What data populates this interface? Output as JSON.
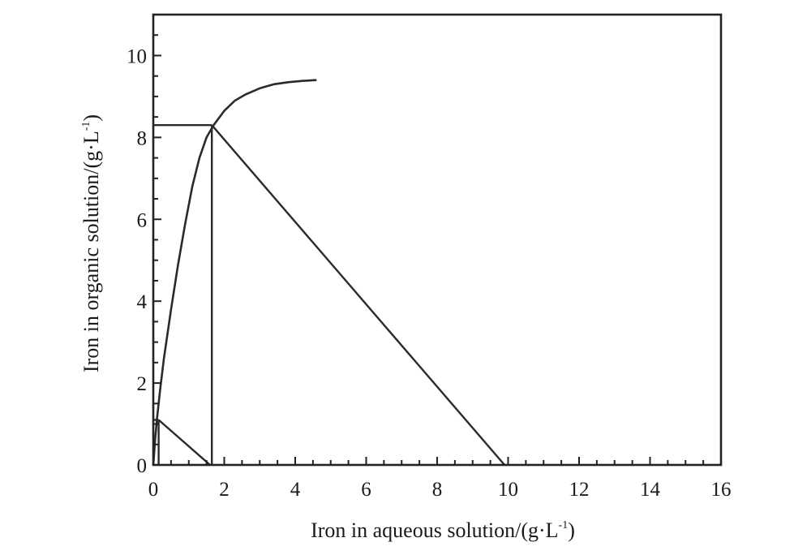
{
  "chart_data": {
    "type": "line",
    "title": "",
    "xlabel": "Iron in aqueous solution/(g·L",
    "xlabel_sup": "-1",
    "xlabel_end": ")",
    "ylabel": "Iron in organic solution/(g·L",
    "ylabel_sup": "-1",
    "ylabel_end": ")",
    "xlim": [
      0,
      16
    ],
    "ylim": [
      0,
      11
    ],
    "x_ticks": [
      0,
      2,
      4,
      6,
      8,
      10,
      12,
      14,
      16
    ],
    "x_tick_labels": [
      "0",
      "2",
      "4",
      "6",
      "8",
      "10",
      "12",
      "14",
      "16"
    ],
    "y_ticks": [
      0,
      2,
      4,
      6,
      8,
      10
    ],
    "y_tick_labels": [
      "0",
      "2",
      "4",
      "6",
      "8",
      "10"
    ],
    "grid": false,
    "series": [
      {
        "kind": "equilibrium-curve",
        "x": [
          0,
          0.05,
          0.1,
          0.2,
          0.3,
          0.5,
          0.7,
          0.9,
          1.1,
          1.3,
          1.5,
          1.7,
          2.0,
          2.3,
          2.6,
          3.0,
          3.4,
          3.8,
          4.2,
          4.6
        ],
        "y": [
          0,
          0.6,
          1.1,
          1.9,
          2.6,
          3.8,
          4.9,
          5.9,
          6.8,
          7.5,
          8.0,
          8.3,
          8.65,
          8.9,
          9.05,
          9.2,
          9.3,
          9.35,
          9.38,
          9.4
        ]
      },
      {
        "kind": "operating-line",
        "x": [
          9.9,
          1.65
        ],
        "y": [
          0,
          8.3
        ]
      },
      {
        "kind": "operating-line",
        "x": [
          1.6,
          0.15
        ],
        "y": [
          0,
          1.1
        ]
      },
      {
        "kind": "stage-horizontal",
        "x": [
          0,
          1.65
        ],
        "y": [
          8.3,
          8.3
        ]
      },
      {
        "kind": "stage-vertical",
        "x": [
          1.65,
          1.65
        ],
        "y": [
          0,
          8.3
        ]
      },
      {
        "kind": "stage-horizontal",
        "x": [
          0,
          0.15
        ],
        "y": [
          1.1,
          1.1
        ]
      },
      {
        "kind": "stage-vertical",
        "x": [
          0.15,
          0.15
        ],
        "y": [
          0,
          1.1
        ]
      }
    ]
  }
}
